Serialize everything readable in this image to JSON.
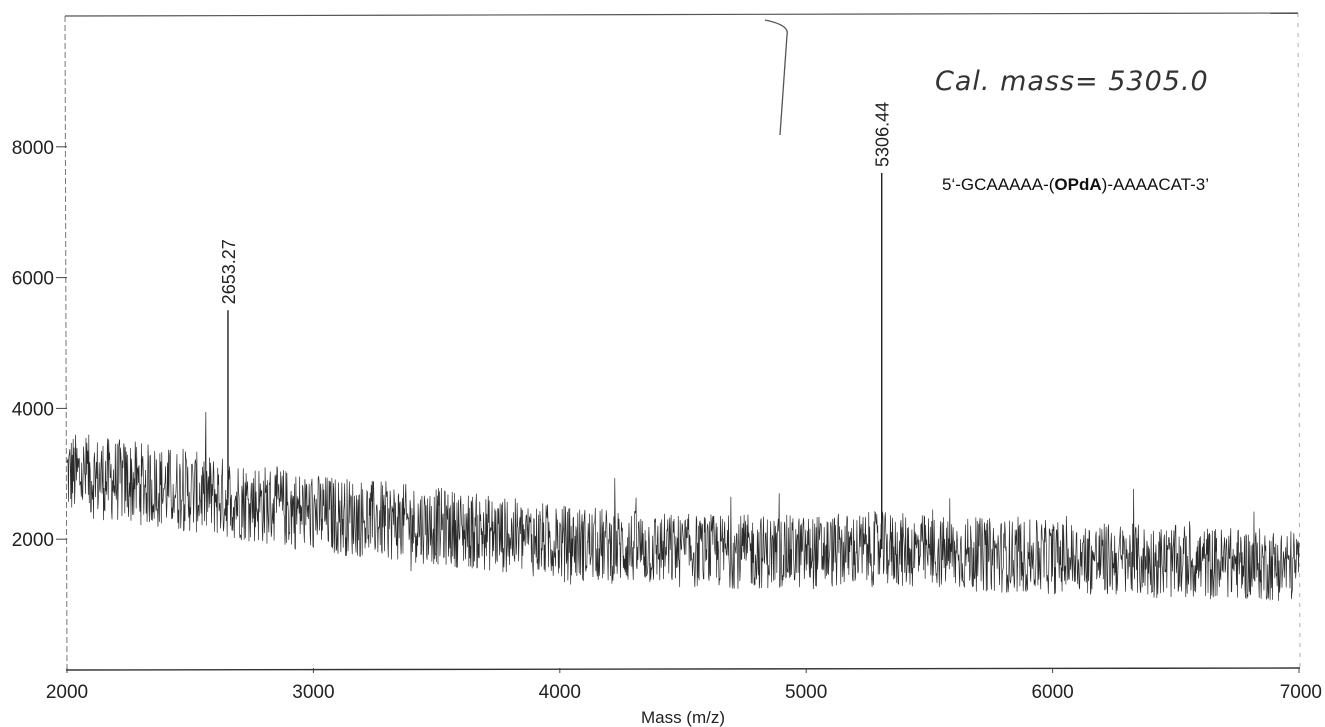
{
  "chart_data": {
    "type": "line",
    "title": "",
    "xlabel": "Mass (m/z)",
    "ylabel": "",
    "xlim": [
      2000,
      7000
    ],
    "ylim": [
      0,
      10000
    ],
    "x_ticks": [
      2000,
      3000,
      4000,
      5000,
      6000,
      7000
    ],
    "y_ticks": [
      2000,
      4000,
      6000,
      8000
    ],
    "x_tick_labels": [
      "2000",
      "3000",
      "4000",
      "5000",
      "6000",
      "7000"
    ],
    "y_tick_labels": [
      "2000",
      "4000",
      "6000",
      "8000"
    ],
    "grid": false,
    "baseline_trend": {
      "x": [
        2000,
        2300,
        2700,
        3000,
        3500,
        4000,
        4500,
        5000,
        5300,
        5600,
        6000,
        6500,
        7000
      ],
      "y": [
        3000,
        2850,
        2600,
        2400,
        2200,
        1950,
        1820,
        1800,
        1850,
        1780,
        1720,
        1650,
        1600
      ],
      "noise_amplitude": 500
    },
    "peaks": [
      {
        "mass": 2653.27,
        "intensity": 5500,
        "label": "2653.27"
      },
      {
        "mass": 5306.44,
        "intensity": 7600,
        "label": "5306.44"
      }
    ],
    "annotations": {
      "calculated_mass": "Cal. mass= 5305.0",
      "sequence_prefix": "5‘-GCAAAAA-(",
      "sequence_bold": "OPdA",
      "sequence_suffix": ")-AAAACAT-3’"
    }
  },
  "colors": {
    "trace": "#2a2a2a",
    "axis": "#444444",
    "background": "#ffffff"
  }
}
